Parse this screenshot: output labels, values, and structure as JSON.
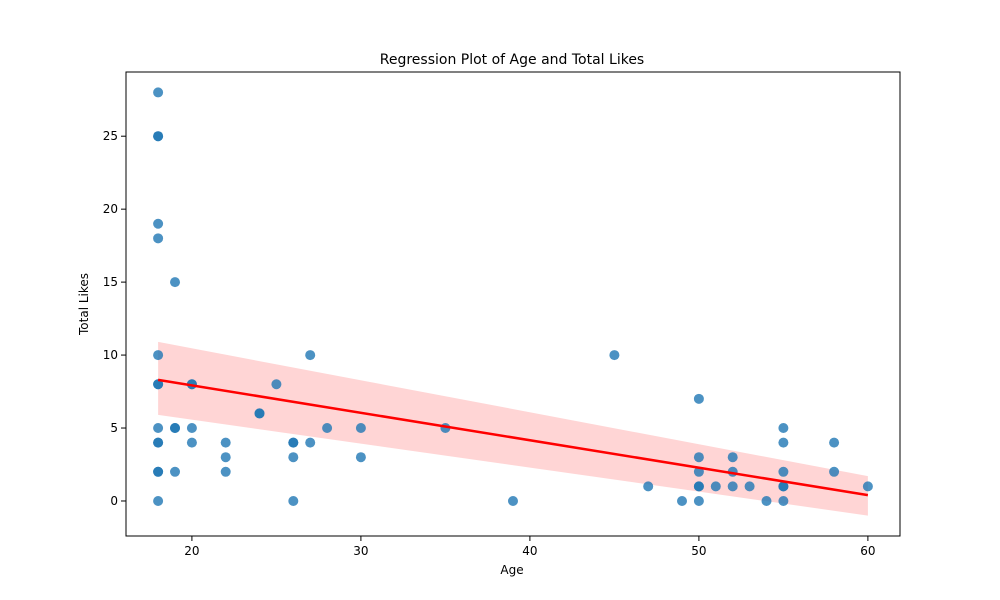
{
  "chart_data": {
    "type": "scatter",
    "title": "Regression Plot of Age and Total Likes",
    "xlabel": "Age",
    "ylabel": "Total Likes",
    "xlim": [
      16.1,
      61.9
    ],
    "ylim": [
      -2.4,
      29.4
    ],
    "xticks": [
      20,
      30,
      40,
      50,
      60
    ],
    "yticks": [
      0,
      5,
      10,
      15,
      20,
      25
    ],
    "grid": false,
    "colors": {
      "points": "#1f77b4",
      "line": "#ff0000",
      "band": "#ffb3b3"
    },
    "points": [
      {
        "x": 18,
        "y": 28
      },
      {
        "x": 18,
        "y": 25
      },
      {
        "x": 18,
        "y": 25
      },
      {
        "x": 18,
        "y": 19
      },
      {
        "x": 18,
        "y": 18
      },
      {
        "x": 18,
        "y": 10
      },
      {
        "x": 18,
        "y": 8
      },
      {
        "x": 18,
        "y": 8
      },
      {
        "x": 18,
        "y": 5
      },
      {
        "x": 18,
        "y": 4
      },
      {
        "x": 18,
        "y": 4
      },
      {
        "x": 18,
        "y": 2
      },
      {
        "x": 18,
        "y": 2
      },
      {
        "x": 18,
        "y": 0
      },
      {
        "x": 19,
        "y": 15
      },
      {
        "x": 19,
        "y": 5
      },
      {
        "x": 19,
        "y": 5
      },
      {
        "x": 19,
        "y": 2
      },
      {
        "x": 20,
        "y": 8
      },
      {
        "x": 20,
        "y": 8
      },
      {
        "x": 20,
        "y": 5
      },
      {
        "x": 20,
        "y": 4
      },
      {
        "x": 22,
        "y": 4
      },
      {
        "x": 22,
        "y": 3
      },
      {
        "x": 22,
        "y": 2
      },
      {
        "x": 24,
        "y": 6
      },
      {
        "x": 24,
        "y": 6
      },
      {
        "x": 25,
        "y": 8
      },
      {
        "x": 26,
        "y": 4
      },
      {
        "x": 26,
        "y": 4
      },
      {
        "x": 26,
        "y": 3
      },
      {
        "x": 26,
        "y": 0
      },
      {
        "x": 27,
        "y": 10
      },
      {
        "x": 27,
        "y": 4
      },
      {
        "x": 28,
        "y": 5
      },
      {
        "x": 30,
        "y": 5
      },
      {
        "x": 30,
        "y": 3
      },
      {
        "x": 35,
        "y": 5
      },
      {
        "x": 39,
        "y": 0
      },
      {
        "x": 45,
        "y": 10
      },
      {
        "x": 47,
        "y": 1
      },
      {
        "x": 49,
        "y": 0
      },
      {
        "x": 50,
        "y": 7
      },
      {
        "x": 50,
        "y": 3
      },
      {
        "x": 50,
        "y": 2
      },
      {
        "x": 50,
        "y": 1
      },
      {
        "x": 50,
        "y": 1
      },
      {
        "x": 50,
        "y": 0
      },
      {
        "x": 51,
        "y": 1
      },
      {
        "x": 52,
        "y": 3
      },
      {
        "x": 52,
        "y": 2
      },
      {
        "x": 52,
        "y": 1
      },
      {
        "x": 53,
        "y": 1
      },
      {
        "x": 54,
        "y": 0
      },
      {
        "x": 55,
        "y": 5
      },
      {
        "x": 55,
        "y": 4
      },
      {
        "x": 55,
        "y": 2
      },
      {
        "x": 55,
        "y": 1
      },
      {
        "x": 55,
        "y": 1
      },
      {
        "x": 55,
        "y": 0
      },
      {
        "x": 58,
        "y": 4
      },
      {
        "x": 58,
        "y": 2
      },
      {
        "x": 60,
        "y": 1
      }
    ],
    "regression": {
      "x": [
        18,
        60
      ],
      "y": [
        8.3,
        0.4
      ],
      "ci_upper": [
        10.9,
        1.7
      ],
      "ci_lower": [
        5.9,
        -1.0
      ]
    }
  }
}
